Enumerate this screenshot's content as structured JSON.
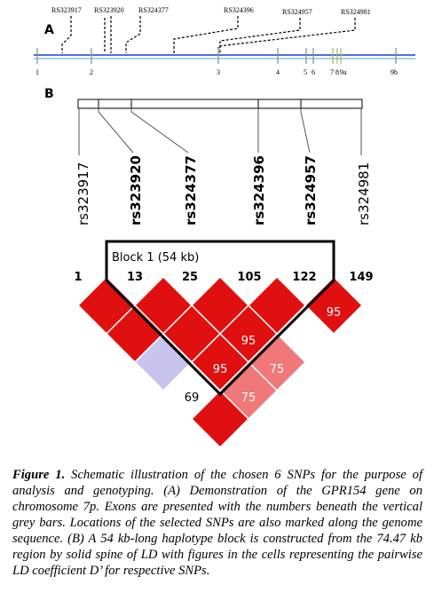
{
  "panel_a": {
    "label": "A",
    "top_snps": [
      "RS323917",
      "RS323920",
      "RS324377",
      "RS324396",
      "RS324957",
      "RS324981"
    ],
    "exons": [
      "1",
      "2",
      "3",
      "4",
      "5",
      "6",
      "7",
      "8",
      "9a",
      "9b"
    ]
  },
  "panel_b": {
    "label": "B",
    "snps": [
      "rs323917",
      "rs323920",
      "rs324377",
      "rs324396",
      "rs324957",
      "rs324981"
    ],
    "positions": [
      "1",
      "13",
      "25",
      "105",
      "122",
      "149"
    ],
    "block_label": "Block 1 (54 kb)",
    "cells": [
      {
        "value": "",
        "color": "#e01010"
      },
      {
        "value": "",
        "color": "#e01010"
      },
      {
        "value": "",
        "color": "#e01010"
      },
      {
        "value": "95",
        "color": "#e01010"
      },
      {
        "value": "",
        "color": "#e01010"
      },
      {
        "value": "",
        "color": "#e01010"
      },
      {
        "value": "95",
        "color": "#e01010"
      },
      {
        "value": "",
        "color": "#c8c4ee"
      },
      {
        "value": "95",
        "color": "#e01010"
      },
      {
        "value": "75",
        "color": "#f07878"
      },
      {
        "value": "69",
        "color": "#ffffff"
      },
      {
        "value": "75",
        "color": "#f07878"
      },
      {
        "value": "",
        "color": "#e01010"
      }
    ]
  },
  "caption": {
    "label": "Figure 1.",
    "text": " Schematic illustration of the chosen 6 SNPs for the purpose of analysis and genotyping. (A) Demonstration of the GPR154 gene on chromosome 7p. Exons are presented with the numbers beneath the vertical grey bars. Locations of the selected SNPs are also marked along the genome sequence. (B) A 54 kb-long haplotype block is constructed from the 74.47 kb region by solid spine of LD with figures in the cells representing the pairwise LD coefficient D’ for respective SNPs."
  }
}
